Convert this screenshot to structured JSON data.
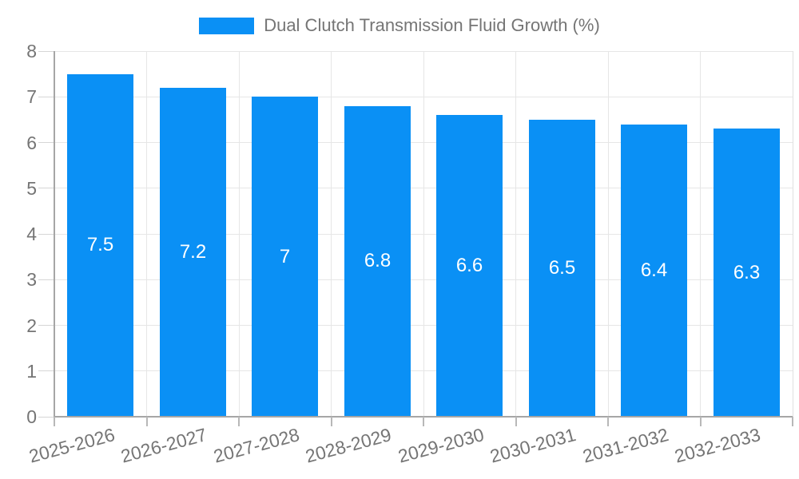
{
  "legend": {
    "label": "Dual Clutch Transmission Fluid Growth (%)"
  },
  "chart_data": {
    "type": "bar",
    "title": "Dual Clutch Transmission Fluid Growth (%)",
    "categories": [
      "2025-2026",
      "2026-2027",
      "2027-2028",
      "2028-2029",
      "2029-2030",
      "2030-2031",
      "2031-2032",
      "2032-2033"
    ],
    "values": [
      7.5,
      7.2,
      7,
      6.8,
      6.6,
      6.5,
      6.4,
      6.3
    ],
    "bar_labels": [
      "7.5",
      "7.2",
      "7",
      "6.8",
      "6.6",
      "6.5",
      "6.4",
      "6.3"
    ],
    "xlabel": "",
    "ylabel": "",
    "ylim": [
      0,
      8
    ],
    "yticks": [
      0,
      1,
      2,
      3,
      4,
      5,
      6,
      7,
      8
    ],
    "grid": true,
    "legend_position": "top",
    "colors": {
      "bar": "#0a90f5",
      "grid": "#e6e6e6",
      "axis": "#a6a6a6",
      "y_tick": "#d6d6d6",
      "x_tick": "#b8b8b8",
      "plot_border": "#e0e0e0",
      "axis_label": "#757575",
      "legend_text": "#757575",
      "bar_label": "#ffffff"
    }
  }
}
